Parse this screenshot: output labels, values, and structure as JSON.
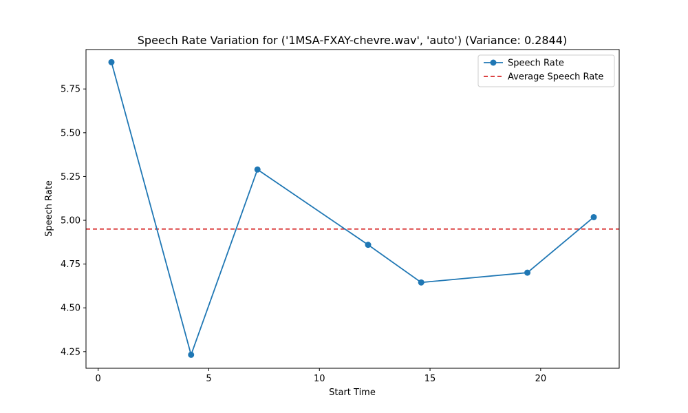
{
  "chart_data": {
    "type": "line",
    "title": "Speech Rate Variation for ('1MSA-FXAY-chevre.wav', 'auto') (Variance: 0.2844)",
    "xlabel": "Start Time",
    "ylabel": "Speech Rate",
    "xlim": [
      -0.55,
      23.55
    ],
    "ylim": [
      4.155,
      5.975
    ],
    "xticks": [
      0,
      5,
      10,
      15,
      20
    ],
    "xtick_labels": [
      "0",
      "5",
      "10",
      "15",
      "20"
    ],
    "yticks": [
      4.25,
      4.5,
      4.75,
      5.0,
      5.25,
      5.5,
      5.75
    ],
    "ytick_labels": [
      "4.25",
      "4.50",
      "4.75",
      "5.00",
      "5.25",
      "5.50",
      "5.75"
    ],
    "series": [
      {
        "name": "Speech Rate",
        "color": "#1f77b4",
        "marker": "circle",
        "x": [
          0.6,
          4.2,
          7.2,
          12.2,
          14.6,
          19.4,
          22.4
        ],
        "y": [
          5.903,
          4.232,
          5.29,
          4.86,
          4.645,
          4.701,
          5.018
        ]
      }
    ],
    "average": {
      "name": "Average Speech Rate",
      "color": "#d62728",
      "style": "dashed",
      "y": 4.95
    },
    "legend_position": "top-right",
    "grid": false
  }
}
